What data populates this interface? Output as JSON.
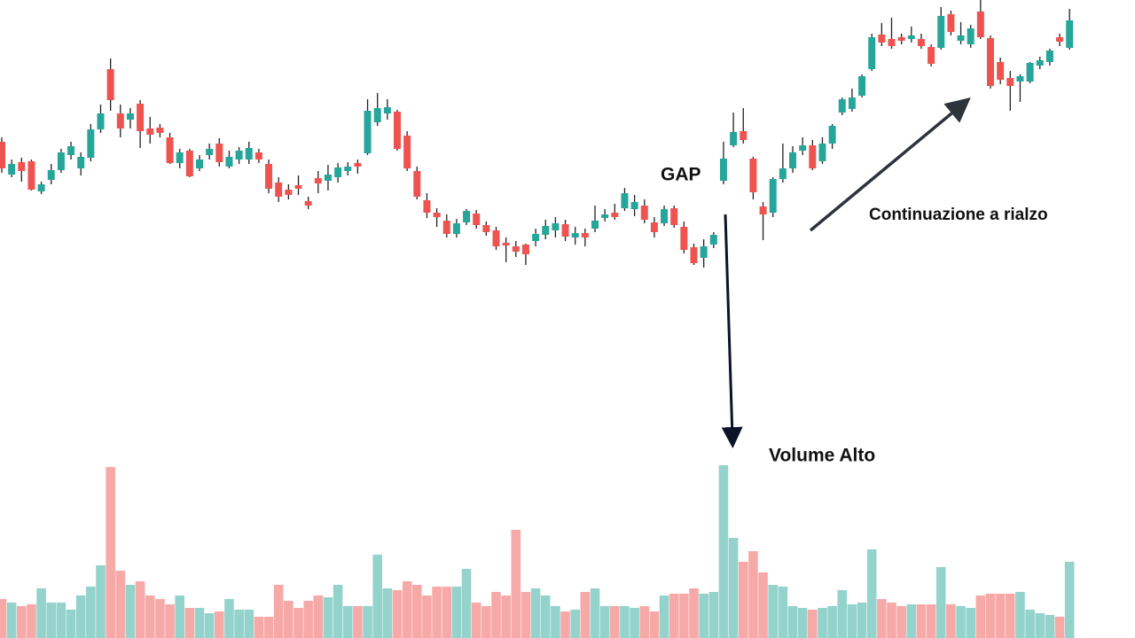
{
  "chart_data": {
    "type": "candlestick",
    "annotations": [
      "GAP",
      "Continuazione a rialzo",
      "Volume Alto"
    ],
    "open": [
      560,
      523,
      537,
      538,
      504,
      517,
      528,
      545,
      530,
      542,
      574,
      642,
      592,
      585,
      603,
      575,
      576,
      565,
      536,
      550,
      530,
      545,
      558,
      532,
      540,
      540,
      548,
      535,
      514,
      506,
      511,
      493,
      519,
      516,
      520,
      527,
      536,
      547,
      582,
      592,
      594,
      567,
      527,
      494,
      480,
      471,
      456,
      469,
      479,
      466,
      460,
      446,
      442,
      444,
      448,
      455,
      460,
      467,
      452,
      457,
      462,
      474,
      480,
      485,
      484,
      488,
      469,
      468,
      485,
      464,
      441,
      429,
      444,
      516,
      556,
      572,
      541,
      487,
      480,
      518,
      530,
      550,
      556,
      538,
      558,
      593,
      597,
      612,
      642,
      681,
      676,
      678,
      676,
      676,
      667,
      666,
      704,
      674,
      670,
      707,
      677,
      650,
      632,
      628,
      628,
      646,
      650,
      678,
      666
    ],
    "high": [
      565,
      540,
      542,
      540,
      515,
      535,
      552,
      560,
      548,
      580,
      602,
      654,
      602,
      598,
      607,
      588,
      580,
      570,
      552,
      552,
      545,
      558,
      564,
      550,
      554,
      560,
      552,
      540,
      520,
      512,
      522,
      498,
      527,
      534,
      536,
      537,
      540,
      608,
      615,
      608,
      596,
      572,
      532,
      502,
      485,
      478,
      473,
      484,
      483,
      470,
      464,
      452,
      448,
      445,
      462,
      472,
      475,
      472,
      464,
      462,
      488,
      484,
      490,
      508,
      500,
      495,
      475,
      488,
      488,
      470,
      445,
      450,
      458,
      560,
      593,
      598,
      543,
      492,
      520,
      558,
      555,
      565,
      562,
      565,
      580,
      610,
      620,
      636,
      682,
      694,
      700,
      682,
      690,
      682,
      670,
      712,
      708,
      695,
      692,
      720,
      680,
      655,
      640,
      636,
      650,
      656,
      665,
      682,
      710
    ],
    "low": [
      525,
      520,
      515,
      505,
      501,
      512,
      525,
      540,
      522,
      538,
      570,
      595,
      565,
      575,
      553,
      558,
      565,
      535,
      530,
      520,
      527,
      540,
      532,
      530,
      535,
      535,
      536,
      502,
      492,
      495,
      500,
      484,
      502,
      505,
      514,
      522,
      524,
      545,
      578,
      585,
      550,
      527,
      495,
      474,
      464,
      452,
      452,
      466,
      462,
      454,
      438,
      424,
      430,
      421,
      442,
      450,
      452,
      448,
      444,
      442,
      458,
      470,
      472,
      482,
      476,
      468,
      452,
      465,
      463,
      434,
      421,
      418,
      440,
      512,
      554,
      558,
      495,
      449,
      475,
      514,
      525,
      545,
      528,
      535,
      552,
      590,
      594,
      610,
      640,
      668,
      665,
      670,
      672,
      665,
      645,
      664,
      680,
      670,
      666,
      676,
      620,
      625,
      595,
      605,
      626,
      642,
      646,
      668,
      664
    ],
    "close": [
      530,
      535,
      527,
      506,
      512,
      528,
      548,
      555,
      543,
      574,
      592,
      607,
      575,
      592,
      572,
      568,
      570,
      536,
      548,
      521,
      540,
      552,
      537,
      543,
      550,
      553,
      540,
      507,
      498,
      500,
      507,
      488,
      513,
      523,
      531,
      532,
      532,
      595,
      598,
      599,
      552,
      530,
      498,
      480,
      475,
      456,
      468,
      482,
      466,
      458,
      442,
      443,
      436,
      433,
      456,
      465,
      468,
      453,
      457,
      452,
      471,
      478,
      475,
      502,
      492,
      472,
      458,
      484,
      466,
      438,
      423,
      442,
      455,
      541,
      571,
      562,
      503,
      478,
      518,
      530,
      548,
      556,
      530,
      558,
      578,
      608,
      610,
      634,
      678,
      672,
      668,
      674,
      680,
      668,
      648,
      702,
      684,
      680,
      688,
      678,
      623,
      630,
      623,
      634,
      649,
      652,
      663,
      673,
      697
    ],
    "volume": [
      44,
      40,
      36,
      38,
      56,
      40,
      40,
      32,
      48,
      58,
      82,
      193,
      76,
      60,
      64,
      48,
      44,
      38,
      48,
      34,
      34,
      28,
      30,
      44,
      32,
      32,
      24,
      24,
      60,
      42,
      34,
      42,
      48,
      46,
      60,
      36,
      36,
      36,
      94,
      56,
      54,
      64,
      60,
      48,
      58,
      58,
      58,
      78,
      40,
      36,
      52,
      48,
      122,
      52,
      56,
      48,
      36,
      30,
      32,
      52,
      56,
      36,
      36,
      36,
      34,
      36,
      30,
      48,
      50,
      50,
      56,
      50,
      52,
      195,
      113,
      86,
      98,
      74,
      60,
      58,
      36,
      34,
      32,
      34,
      36,
      54,
      38,
      40,
      100,
      44,
      40,
      36,
      38,
      38,
      38,
      80,
      38,
      36,
      34,
      48,
      50,
      50,
      50,
      52,
      32,
      28,
      26,
      24,
      86
    ],
    "ylim": [
      0,
      720
    ],
    "y2lim": [
      0,
      720
    ],
    "up_color": "#26a69a",
    "down_color": "#ef5350",
    "volume_up_color": "#93d3cc",
    "volume_down_color": "#f7a9a7"
  }
}
